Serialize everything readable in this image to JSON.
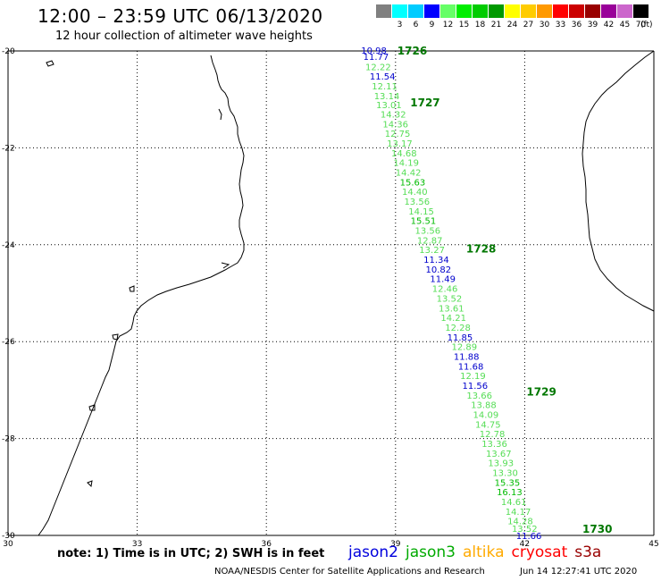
{
  "header": {
    "title": "12:00 – 23:59 UTC 06/13/2020",
    "subtitle": "12 hour collection of altimeter wave heights"
  },
  "scale": {
    "unit": "(ft)",
    "stops": [
      {
        "label": "",
        "color": "#808080"
      },
      {
        "label": "3",
        "color": "#00ffff"
      },
      {
        "label": "6",
        "color": "#00ccff"
      },
      {
        "label": "9",
        "color": "#0000ff"
      },
      {
        "label": "12",
        "color": "#66ff66"
      },
      {
        "label": "15",
        "color": "#00ee00"
      },
      {
        "label": "18",
        "color": "#00cc00"
      },
      {
        "label": "21",
        "color": "#009900"
      },
      {
        "label": "24",
        "color": "#ffff00"
      },
      {
        "label": "27",
        "color": "#ffcc00"
      },
      {
        "label": "30",
        "color": "#ff9900"
      },
      {
        "label": "33",
        "color": "#ff0000"
      },
      {
        "label": "36",
        "color": "#cc0000"
      },
      {
        "label": "39",
        "color": "#990000"
      },
      {
        "label": "42",
        "color": "#990099"
      },
      {
        "label": "45",
        "color": "#cc66cc"
      },
      {
        "label": "70",
        "color": "#000000"
      }
    ]
  },
  "map": {
    "lat_labels": [
      "-20",
      "-22",
      "-24",
      "-26",
      "-28",
      "-30"
    ],
    "lon_labels": [
      "30",
      "33",
      "36",
      "39",
      "42",
      "45"
    ],
    "time_labels": [
      {
        "text": "1726",
        "lon": 39.0,
        "lat": -19.98
      },
      {
        "text": "1727",
        "lon": 39.3,
        "lat": -21.05
      },
      {
        "text": "1728",
        "lon": 40.6,
        "lat": -24.07
      },
      {
        "text": "1729",
        "lon": 42.0,
        "lat": -27.02
      },
      {
        "text": "1730",
        "lon": 43.3,
        "lat": -29.85
      }
    ],
    "observations": [
      {
        "value": "10.98",
        "lon": 38.2,
        "lat": -19.98,
        "color": "#0000cc"
      },
      {
        "value": "11.77",
        "lon": 38.25,
        "lat": -20.11,
        "color": "#0000cc"
      },
      {
        "value": "12.22",
        "lon": 38.3,
        "lat": -20.32,
        "color": "#55dd55"
      },
      {
        "value": "11.54",
        "lon": 38.4,
        "lat": -20.52,
        "color": "#0000cc"
      },
      {
        "value": "12.11",
        "lon": 38.45,
        "lat": -20.72,
        "color": "#55dd55"
      },
      {
        "value": "13.14",
        "lon": 38.5,
        "lat": -20.92,
        "color": "#55dd55"
      },
      {
        "value": "13.01",
        "lon": 38.55,
        "lat": -21.11,
        "color": "#55dd55"
      },
      {
        "value": "14.32",
        "lon": 38.65,
        "lat": -21.3,
        "color": "#55dd55"
      },
      {
        "value": "14.36",
        "lon": 38.7,
        "lat": -21.5,
        "color": "#55dd55"
      },
      {
        "value": "12.75",
        "lon": 38.75,
        "lat": -21.7,
        "color": "#55dd55"
      },
      {
        "value": "13.17",
        "lon": 38.8,
        "lat": -21.9,
        "color": "#55dd55"
      },
      {
        "value": "14.68",
        "lon": 38.9,
        "lat": -22.1,
        "color": "#55dd55"
      },
      {
        "value": "14.19",
        "lon": 38.95,
        "lat": -22.3,
        "color": "#55dd55"
      },
      {
        "value": "14.42",
        "lon": 39.0,
        "lat": -22.5,
        "color": "#55dd55"
      },
      {
        "value": "15.63",
        "lon": 39.1,
        "lat": -22.7,
        "color": "#00bb00"
      },
      {
        "value": "14.40",
        "lon": 39.15,
        "lat": -22.9,
        "color": "#55dd55"
      },
      {
        "value": "13.56",
        "lon": 39.2,
        "lat": -23.1,
        "color": "#55dd55"
      },
      {
        "value": "14.15",
        "lon": 39.3,
        "lat": -23.3,
        "color": "#55dd55"
      },
      {
        "value": "15.51",
        "lon": 39.35,
        "lat": -23.5,
        "color": "#00bb00"
      },
      {
        "value": "13.56",
        "lon": 39.45,
        "lat": -23.7,
        "color": "#55dd55"
      },
      {
        "value": "12.87",
        "lon": 39.5,
        "lat": -23.9,
        "color": "#55dd55"
      },
      {
        "value": "13.27",
        "lon": 39.55,
        "lat": -24.1,
        "color": "#55dd55"
      },
      {
        "value": "11.34",
        "lon": 39.65,
        "lat": -24.3,
        "color": "#0000cc"
      },
      {
        "value": "10.82",
        "lon": 39.7,
        "lat": -24.5,
        "color": "#0000cc"
      },
      {
        "value": "11.49",
        "lon": 39.8,
        "lat": -24.7,
        "color": "#0000cc"
      },
      {
        "value": "12.46",
        "lon": 39.85,
        "lat": -24.9,
        "color": "#55dd55"
      },
      {
        "value": "13.52",
        "lon": 39.95,
        "lat": -25.1,
        "color": "#55dd55"
      },
      {
        "value": "13.61",
        "lon": 40.0,
        "lat": -25.3,
        "color": "#55dd55"
      },
      {
        "value": "14.21",
        "lon": 40.05,
        "lat": -25.5,
        "color": "#55dd55"
      },
      {
        "value": "12.28",
        "lon": 40.15,
        "lat": -25.7,
        "color": "#55dd55"
      },
      {
        "value": "11.85",
        "lon": 40.2,
        "lat": -25.9,
        "color": "#0000cc"
      },
      {
        "value": "12.89",
        "lon": 40.3,
        "lat": -26.1,
        "color": "#55dd55"
      },
      {
        "value": "11.88",
        "lon": 40.35,
        "lat": -26.3,
        "color": "#0000cc"
      },
      {
        "value": "11.68",
        "lon": 40.45,
        "lat": -26.5,
        "color": "#0000cc"
      },
      {
        "value": "12.19",
        "lon": 40.5,
        "lat": -26.7,
        "color": "#55dd55"
      },
      {
        "value": "11.56",
        "lon": 40.55,
        "lat": -26.9,
        "color": "#0000cc"
      },
      {
        "value": "13.66",
        "lon": 40.65,
        "lat": -27.1,
        "color": "#55dd55"
      },
      {
        "value": "13.88",
        "lon": 40.75,
        "lat": -27.3,
        "color": "#55dd55"
      },
      {
        "value": "14.09",
        "lon": 40.8,
        "lat": -27.5,
        "color": "#55dd55"
      },
      {
        "value": "14.75",
        "lon": 40.85,
        "lat": -27.7,
        "color": "#55dd55"
      },
      {
        "value": "12.78",
        "lon": 40.95,
        "lat": -27.9,
        "color": "#55dd55"
      },
      {
        "value": "13.36",
        "lon": 41.0,
        "lat": -28.1,
        "color": "#55dd55"
      },
      {
        "value": "13.67",
        "lon": 41.1,
        "lat": -28.3,
        "color": "#55dd55"
      },
      {
        "value": "13.93",
        "lon": 41.15,
        "lat": -28.5,
        "color": "#55dd55"
      },
      {
        "value": "13.30",
        "lon": 41.25,
        "lat": -28.7,
        "color": "#55dd55"
      },
      {
        "value": "15.35",
        "lon": 41.3,
        "lat": -28.9,
        "color": "#00bb00"
      },
      {
        "value": "16.13",
        "lon": 41.35,
        "lat": -29.1,
        "color": "#00bb00"
      },
      {
        "value": "14.61",
        "lon": 41.45,
        "lat": -29.3,
        "color": "#55dd55"
      },
      {
        "value": "14.17",
        "lon": 41.55,
        "lat": -29.5,
        "color": "#55dd55"
      },
      {
        "value": "14.28",
        "lon": 41.6,
        "lat": -29.7,
        "color": "#55dd55"
      },
      {
        "value": "13.52",
        "lon": 41.7,
        "lat": -29.85,
        "color": "#55dd55"
      },
      {
        "value": "11.66",
        "lon": 41.8,
        "lat": -30.0,
        "color": "#0000cc"
      }
    ]
  },
  "footer": {
    "note": "note: 1) Time is in UTC; 2) SWH is in feet",
    "satellites": [
      {
        "name": "jason2",
        "color": "#0000dd"
      },
      {
        "name": "jason3",
        "color": "#00aa00"
      },
      {
        "name": "altika",
        "color": "#ffaa00"
      },
      {
        "name": "cryosat",
        "color": "#ff0000"
      },
      {
        "name": "s3a",
        "color": "#990000"
      }
    ],
    "credit": "NOAA/NESDIS Center for Satellite Applications and Research",
    "timestamp": "Jun 14 12:27:41 UTC 2020"
  }
}
